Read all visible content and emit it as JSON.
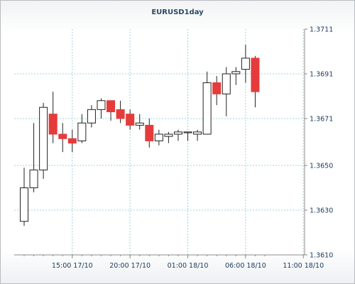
{
  "chart_data": {
    "type": "candlestick",
    "title": "EURUSD1day",
    "x_tick_labels": [
      "15:00 17/10",
      "20:00 17/10",
      "01:00 18/10",
      "06:00 18/10",
      "11:00 18/10"
    ],
    "y_ticks": [
      "1.3610",
      "1.3630",
      "1.3650",
      "1.3671",
      "1.3691",
      "1.3711"
    ],
    "ylim": [
      1.361,
      1.3711
    ],
    "grid": true,
    "colors": {
      "up": "#ffffff",
      "down": "#e53b3b",
      "wick": "#222222",
      "grid": "#9fd5d8",
      "axis": "#8c8c8c"
    },
    "candles": [
      {
        "o": 1.3625,
        "h": 1.3649,
        "l": 1.3623,
        "c": 1.364
      },
      {
        "o": 1.364,
        "h": 1.3669,
        "l": 1.3638,
        "c": 1.3648
      },
      {
        "o": 1.3648,
        "h": 1.3678,
        "l": 1.3644,
        "c": 1.3676
      },
      {
        "o": 1.3673,
        "h": 1.3683,
        "l": 1.366,
        "c": 1.3664
      },
      {
        "o": 1.3664,
        "h": 1.3669,
        "l": 1.3656,
        "c": 1.3662
      },
      {
        "o": 1.3662,
        "h": 1.3666,
        "l": 1.3656,
        "c": 1.366
      },
      {
        "o": 1.3661,
        "h": 1.3673,
        "l": 1.366,
        "c": 1.3669
      },
      {
        "o": 1.3669,
        "h": 1.3677,
        "l": 1.3667,
        "c": 1.3675
      },
      {
        "o": 1.3675,
        "h": 1.368,
        "l": 1.3671,
        "c": 1.3679
      },
      {
        "o": 1.3679,
        "h": 1.3679,
        "l": 1.367,
        "c": 1.3674
      },
      {
        "o": 1.3675,
        "h": 1.3679,
        "l": 1.3669,
        "c": 1.3671
      },
      {
        "o": 1.3673,
        "h": 1.3675,
        "l": 1.3666,
        "c": 1.3668
      },
      {
        "o": 1.3668,
        "h": 1.3673,
        "l": 1.3666,
        "c": 1.3669
      },
      {
        "o": 1.3668,
        "h": 1.3671,
        "l": 1.3658,
        "c": 1.3661
      },
      {
        "o": 1.3661,
        "h": 1.3666,
        "l": 1.3659,
        "c": 1.3664
      },
      {
        "o": 1.3663,
        "h": 1.3665,
        "l": 1.366,
        "c": 1.3664
      },
      {
        "o": 1.3664,
        "h": 1.3666,
        "l": 1.3661,
        "c": 1.3665
      },
      {
        "o": 1.3665,
        "h": 1.3665,
        "l": 1.3661,
        "c": 1.3665
      },
      {
        "o": 1.3664,
        "h": 1.3666,
        "l": 1.3661,
        "c": 1.3665
      },
      {
        "o": 1.3664,
        "h": 1.3692,
        "l": 1.3664,
        "c": 1.3687
      },
      {
        "o": 1.3687,
        "h": 1.369,
        "l": 1.3677,
        "c": 1.3682
      },
      {
        "o": 1.3682,
        "h": 1.3694,
        "l": 1.3672,
        "c": 1.3691
      },
      {
        "o": 1.3691,
        "h": 1.3694,
        "l": 1.3686,
        "c": 1.3692
      },
      {
        "o": 1.3693,
        "h": 1.3704,
        "l": 1.3687,
        "c": 1.3698
      },
      {
        "o": 1.3698,
        "h": 1.3699,
        "l": 1.3676,
        "c": 1.3683
      }
    ]
  }
}
